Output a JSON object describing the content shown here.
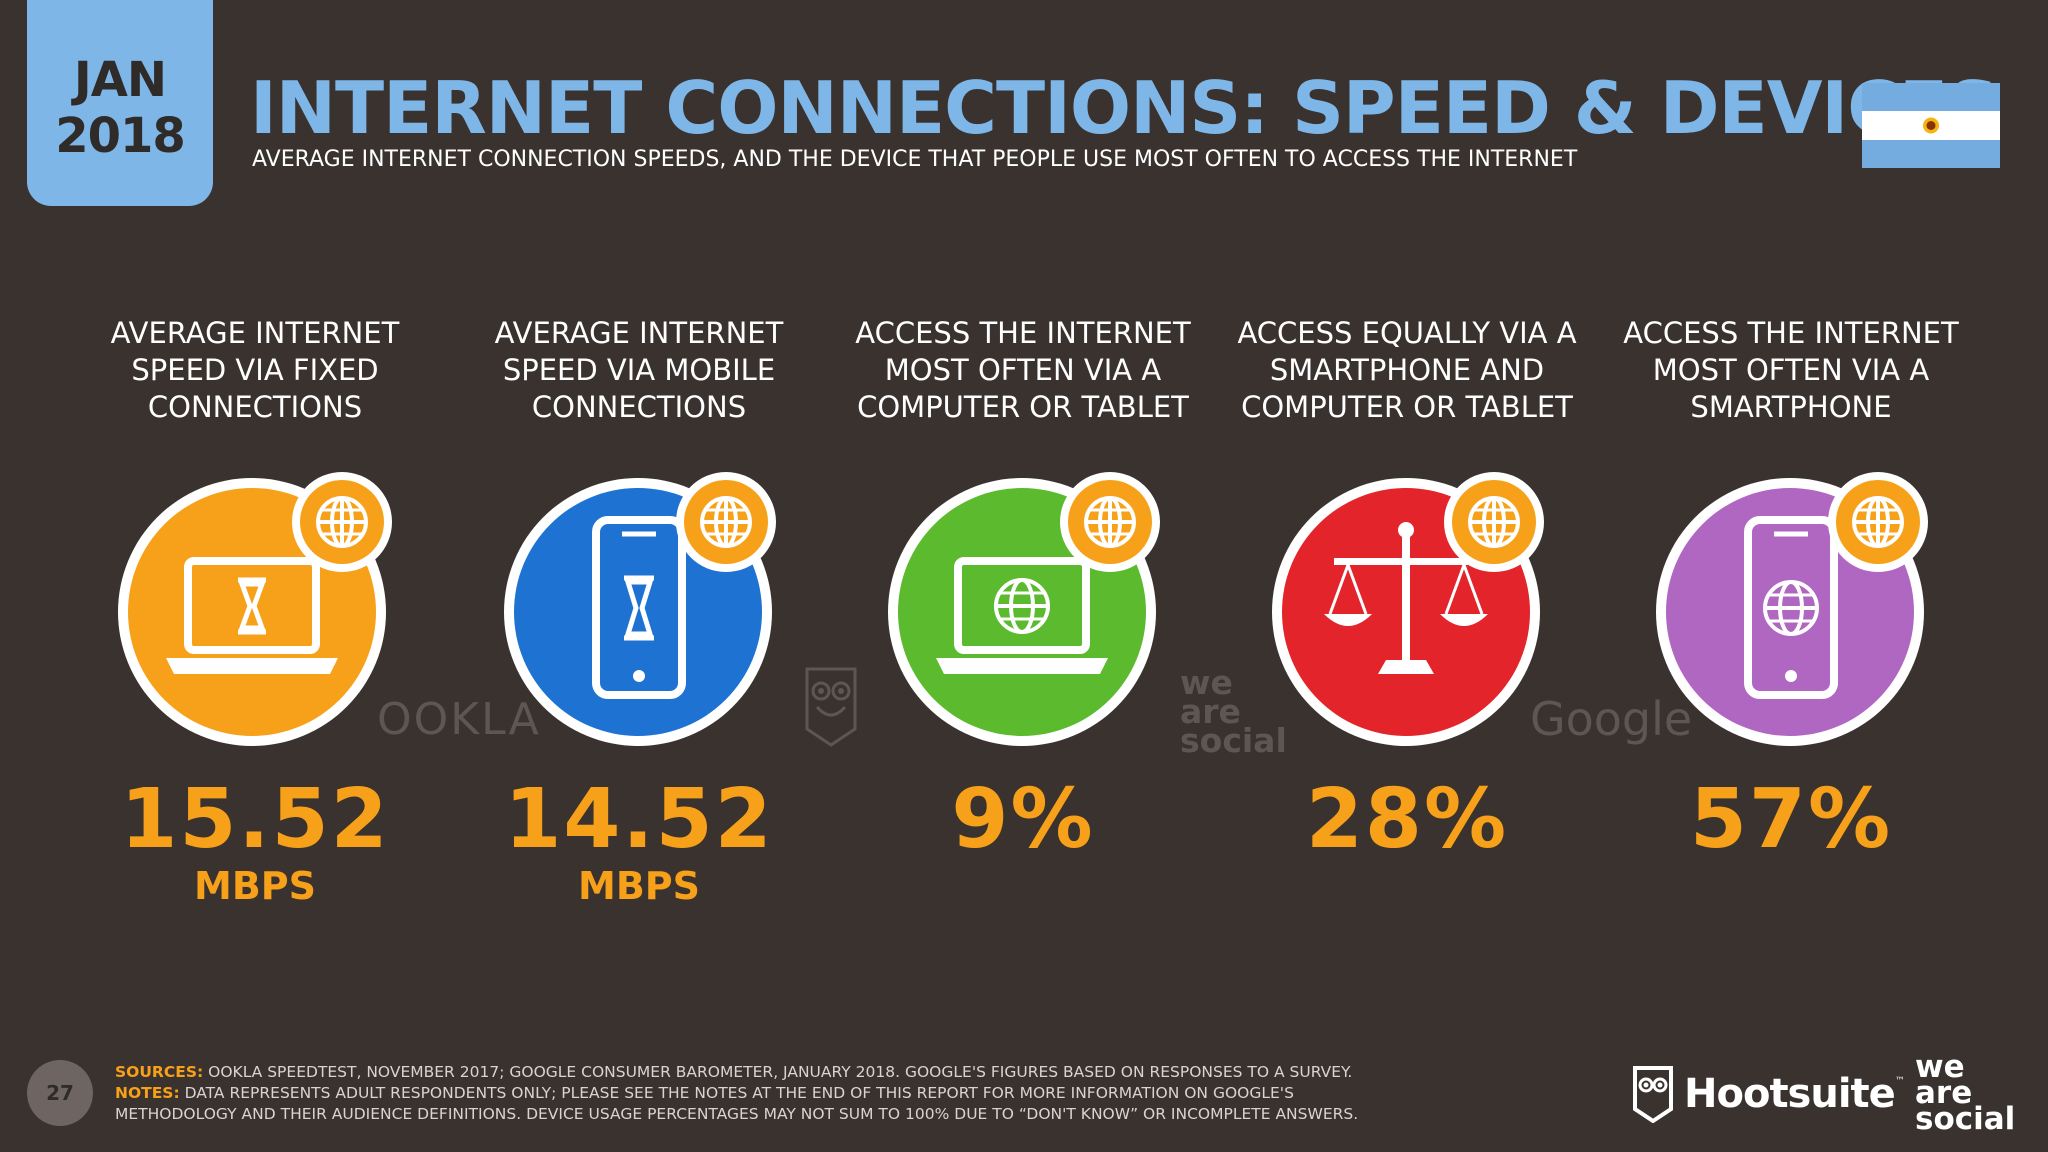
{
  "header": {
    "date_month": "JAN",
    "date_year": "2018",
    "title": "INTERNET CONNECTIONS: SPEED & DEVICES",
    "subtitle": "AVERAGE INTERNET CONNECTION SPEEDS, AND THE DEVICE THAT PEOPLE USE MOST OFTEN TO ACCESS THE INTERNET"
  },
  "colors": {
    "orange": "#f7a11a",
    "blue": "#1e73d2",
    "green": "#5bba2e",
    "red": "#e3242b",
    "purple": "#b067c2",
    "accent_blue": "#7fb6e8"
  },
  "columns": [
    {
      "label": "AVERAGE INTERNET SPEED VIA FIXED CONNECTIONS",
      "value": "15.52",
      "unit": "MBPS",
      "icon": "laptop-hourglass-icon",
      "color": "#f7a11a"
    },
    {
      "label": "AVERAGE INTERNET SPEED VIA MOBILE CONNECTIONS",
      "value": "14.52",
      "unit": "MBPS",
      "icon": "phone-hourglass-icon",
      "color": "#1e73d2"
    },
    {
      "label": "ACCESS THE INTERNET MOST OFTEN VIA A COMPUTER OR TABLET",
      "value": "9%",
      "unit": "",
      "icon": "laptop-globe-icon",
      "color": "#5bba2e"
    },
    {
      "label": "ACCESS EQUALLY VIA A SMARTPHONE AND COMPUTER OR TABLET",
      "value": "28%",
      "unit": "",
      "icon": "scales-icon",
      "color": "#e3242b"
    },
    {
      "label": "ACCESS THE INTERNET MOST OFTEN VIA A SMARTPHONE",
      "value": "57%",
      "unit": "",
      "icon": "phone-globe-icon",
      "color": "#b067c2"
    }
  ],
  "watermarks": {
    "ookla": "OOKLA",
    "google": "Google",
    "we_are_social": [
      "we",
      "are",
      "social"
    ]
  },
  "footer": {
    "page_number": "27",
    "sources_label": "SOURCES:",
    "sources_text": "OOKLA SPEEDTEST, NOVEMBER 2017; GOOGLE CONSUMER BAROMETER, JANUARY 2018. GOOGLE'S FIGURES BASED ON RESPONSES TO A SURVEY.",
    "notes_label": "NOTES:",
    "notes_text": "DATA REPRESENTS ADULT RESPONDENTS ONLY; PLEASE SEE THE NOTES AT THE END OF THIS REPORT FOR MORE INFORMATION ON GOOGLE'S METHODOLOGY AND THEIR AUDIENCE DEFINITIONS. DEVICE USAGE PERCENTAGES MAY NOT SUM TO 100% DUE TO “DON'T KNOW” OR INCOMPLETE ANSWERS.",
    "hootsuite": "Hootsuite",
    "hootsuite_tm": "™",
    "we_are_social": [
      "we",
      "are",
      "social"
    ]
  }
}
